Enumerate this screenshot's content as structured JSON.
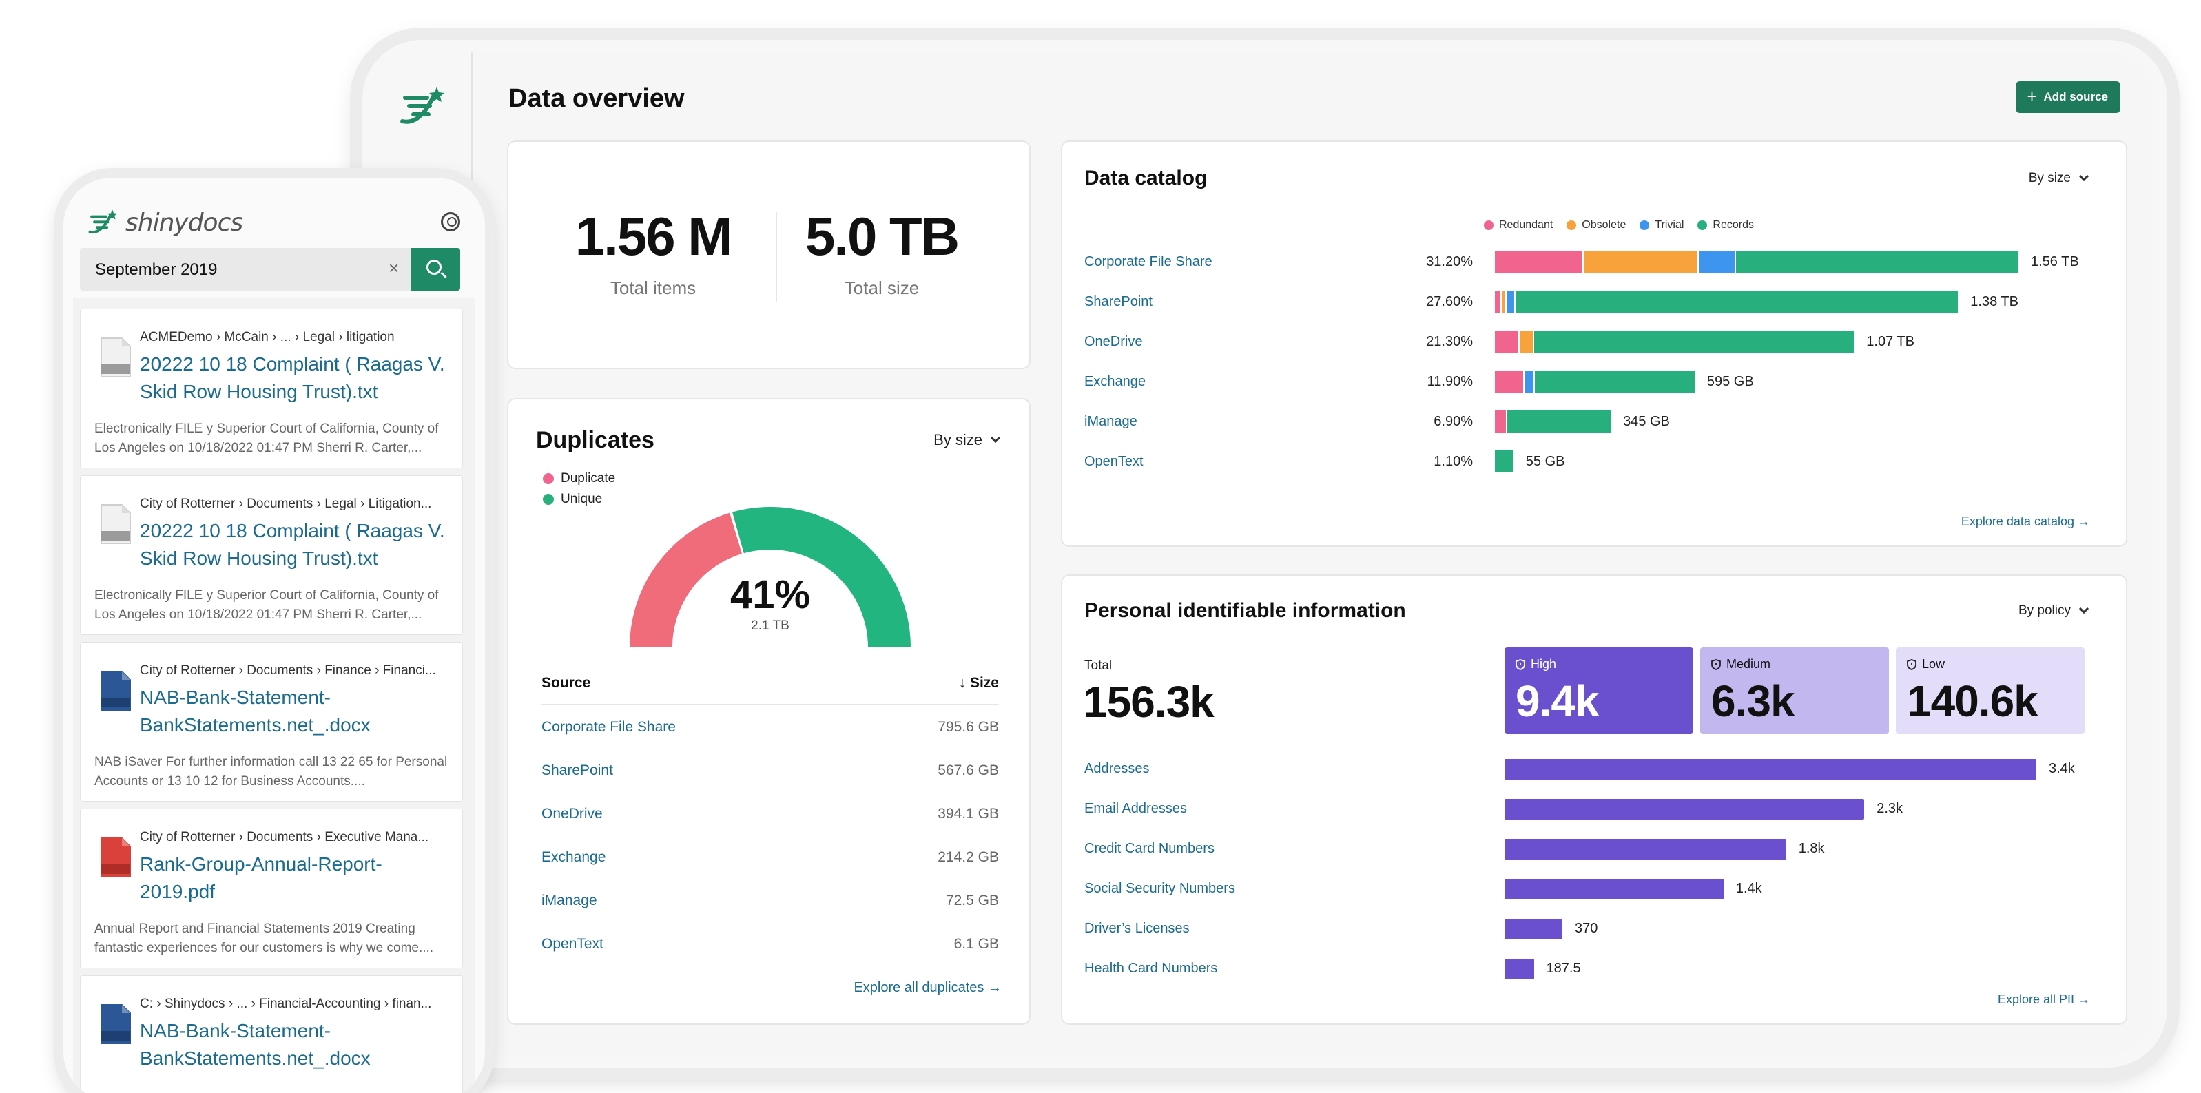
{
  "colors": {
    "redundant": "#f0648e",
    "obsolete": "#f7a23b",
    "trivial": "#3e95f0",
    "records": "#27b07e",
    "duplicate": "#f06c7a",
    "unique": "#22b57f",
    "pii_high": "#6a4fcf",
    "pii_medium": "#c3b7f0",
    "pii_low": "#e4ddfa",
    "accent": "#1e7a5a",
    "link": "#1a6b8f"
  },
  "dashboard": {
    "title": "Data overview",
    "add_source": "Add source",
    "kpis": [
      {
        "value": "1.56 M",
        "label": "Total items"
      },
      {
        "value": "5.0 TB",
        "label": "Total size"
      }
    ],
    "duplicates": {
      "title": "Duplicates",
      "dropdown": "By size",
      "legend": [
        "Duplicate",
        "Unique"
      ],
      "percent_duplicate": 41,
      "gauge_value": "41%",
      "gauge_sub": "2.1 TB",
      "table_head": {
        "source": "Source",
        "size": "Size"
      },
      "rows": [
        {
          "source": "Corporate File Share",
          "size": "795.6 GB"
        },
        {
          "source": "SharePoint",
          "size": "567.6 GB"
        },
        {
          "source": "OneDrive",
          "size": "394.1 GB"
        },
        {
          "source": "Exchange",
          "size": "214.2 GB"
        },
        {
          "source": "iManage",
          "size": "72.5 GB"
        },
        {
          "source": "OpenText",
          "size": "6.1 GB"
        }
      ],
      "explore": "Explore all duplicates →"
    },
    "catalog": {
      "title": "Data catalog",
      "dropdown": "By size",
      "legend": [
        "Redundant",
        "Obsolete",
        "Trivial",
        "Records"
      ],
      "rows": [
        {
          "name": "Corporate File Share",
          "pct": "31.20%",
          "total": "1.56 TB",
          "size_tb": 1.56,
          "segments": [
            0.17,
            0.22,
            0.07,
            0.54
          ]
        },
        {
          "name": "SharePoint",
          "pct": "27.60%",
          "total": "1.38 TB",
          "size_tb": 1.38,
          "segments": [
            0.015,
            0.01,
            0.02,
            0.955
          ]
        },
        {
          "name": "OneDrive",
          "pct": "21.30%",
          "total": "1.07 TB",
          "size_tb": 1.07,
          "segments": [
            0.07,
            0.04,
            0.0,
            0.89
          ]
        },
        {
          "name": "Exchange",
          "pct": "11.90%",
          "total": "595 GB",
          "size_tb": 0.595,
          "segments": [
            0.15,
            0.0,
            0.05,
            0.8
          ]
        },
        {
          "name": "iManage",
          "pct": "6.90%",
          "total": "345 GB",
          "size_tb": 0.345,
          "segments": [
            0.11,
            0.0,
            0.0,
            0.89
          ]
        },
        {
          "name": "OpenText",
          "pct": "1.10%",
          "total": "55 GB",
          "size_tb": 0.055,
          "segments": [
            0.0,
            0.0,
            0.0,
            1.0
          ]
        }
      ],
      "explore": "Explore data catalog →"
    },
    "pii": {
      "title": "Personal identifiable information",
      "dropdown": "By policy",
      "total_label": "Total",
      "total_value": "156.3k",
      "tiles": [
        {
          "label": "High",
          "value": "9.4k"
        },
        {
          "label": "Medium",
          "value": "6.3k"
        },
        {
          "label": "Low",
          "value": "140.6k"
        }
      ],
      "rows": [
        {
          "name": "Addresses",
          "label": "3.4k",
          "value": 3400
        },
        {
          "name": "Email Addresses",
          "label": "2.3k",
          "value": 2300
        },
        {
          "name": "Credit Card Numbers",
          "label": "1.8k",
          "value": 1800
        },
        {
          "name": "Social Security Numbers",
          "label": "1.4k",
          "value": 1400
        },
        {
          "name": "Driver’s Licenses",
          "label": "370",
          "value": 370
        },
        {
          "name": "Health Card Numbers",
          "label": "187.5",
          "value": 187.5
        }
      ],
      "explore": "Explore all PII →"
    }
  },
  "phone": {
    "brand": "shinydocs",
    "search_value": "September 2019",
    "results": [
      {
        "icon": "txt",
        "path": "ACMEDemo › McCain › ... › Legal › litigation",
        "title": "20222 10 18 Complaint ( Raagas V. Skid Row Housing Trust).txt",
        "snippet": "Electronically FILE y Superior Court of California, County of Los Angeles on 10/18/2022 01:47 PM Sherri R. Carter,..."
      },
      {
        "icon": "txt",
        "path": "City of Rotterner › Documents › Legal › Litigation...",
        "title": "20222 10 18 Complaint ( Raagas V. Skid Row Housing Trust).txt",
        "snippet": "Electronically FILE y Superior Court of California, County of Los Angeles on 10/18/2022 01:47 PM Sherri R. Carter,..."
      },
      {
        "icon": "docx",
        "path": "City of Rotterner › Documents › Finance › Financi...",
        "title": "NAB-Bank-Statement-BankStatements.net_.docx",
        "snippet": "NAB iSaver For further information call 13 22 65 for Personal Accounts or 13 10 12 for Business Accounts...."
      },
      {
        "icon": "pdf",
        "path": "City of Rotterner › Documents › Executive Mana...",
        "title": "Rank-Group-Annual-Report-2019.pdf",
        "snippet": "Annual Report and Financial Statements 2019 Creating fantastic experiences for our customers is why we come...."
      },
      {
        "icon": "docx",
        "path": "C: › Shinydocs › ... › Financial-Accounting › finan...",
        "title": "NAB-Bank-Statement-BankStatements.net_.docx",
        "snippet": ""
      }
    ]
  }
}
